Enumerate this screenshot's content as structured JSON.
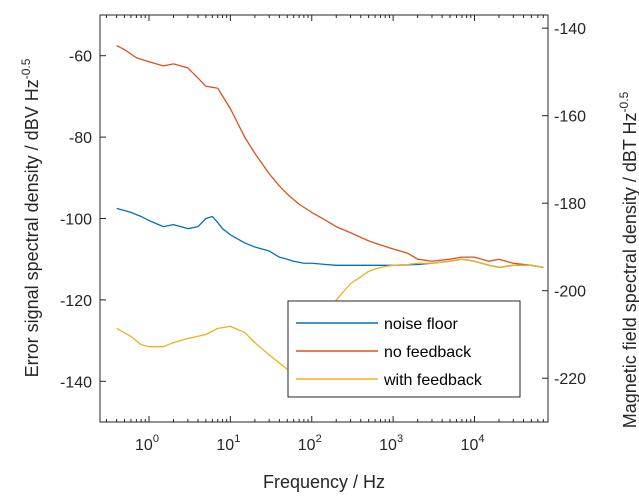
{
  "chart_data": {
    "type": "line",
    "xlabel": "Frequency / Hz",
    "ylabel_left": "Error signal spectral density / dBV Hz",
    "ylabel_left_exp": "-0.5",
    "ylabel_right": "Magnetic field spectral density / dBT Hz",
    "ylabel_right_exp": "-0.5",
    "x_scale": "log",
    "xlim": [
      0.25,
      80000
    ],
    "ylim_left": [
      -150,
      -50
    ],
    "ylim_right": [
      -230,
      -137
    ],
    "x_ticks": [
      1,
      10,
      100,
      1000,
      10000
    ],
    "x_tick_labels": [
      {
        "base": "10",
        "exp": "0"
      },
      {
        "base": "10",
        "exp": "1"
      },
      {
        "base": "10",
        "exp": "2"
      },
      {
        "base": "10",
        "exp": "3"
      },
      {
        "base": "10",
        "exp": "4"
      }
    ],
    "y_ticks_left": [
      -60,
      -80,
      -100,
      -120,
      -140
    ],
    "y_tick_labels_left": [
      "-60",
      "-80",
      "-100",
      "-120",
      "-140"
    ],
    "y_ticks_right": [
      -140,
      -160,
      -180,
      -200,
      -220
    ],
    "y_tick_labels_right": [
      "-140",
      "-160",
      "-180",
      "-200",
      "-220"
    ],
    "grid": false,
    "legend_position": "bottom-right",
    "series": [
      {
        "name": "noise floor",
        "color": "#0072BD",
        "x": [
          0.4,
          0.6,
          0.8,
          1,
          1.5,
          2,
          3,
          4,
          5,
          6,
          7,
          8,
          10,
          15,
          20,
          30,
          40,
          50,
          60,
          80,
          100,
          150,
          200,
          300,
          500,
          1000,
          2000,
          3000,
          5000,
          7000,
          10000,
          15000,
          20000,
          30000,
          50000,
          70000
        ],
        "y": [
          -97.5,
          -98.5,
          -99.5,
          -100.5,
          -102,
          -101.5,
          -102.5,
          -102,
          -100,
          -99.5,
          -101,
          -102.5,
          -104,
          -106,
          -107,
          -108,
          -109.5,
          -110,
          -110.5,
          -111,
          -111,
          -111.3,
          -111.5,
          -111.5,
          -111.5,
          -111.5,
          -111.3,
          -111,
          -110.5,
          -110,
          -110.5,
          -111.5,
          -112,
          -111.5,
          -111.5,
          -112
        ]
      },
      {
        "name": "no feedback",
        "color": "#D95319",
        "x": [
          0.4,
          0.5,
          0.7,
          1,
          1.5,
          2,
          3,
          4,
          5,
          7,
          10,
          15,
          20,
          30,
          40,
          50,
          70,
          100,
          150,
          200,
          300,
          500,
          700,
          1000,
          1500,
          2000,
          3000,
          5000,
          7000,
          10000,
          15000,
          20000,
          30000,
          50000,
          70000
        ],
        "y": [
          -57.5,
          -58.5,
          -60.5,
          -61.5,
          -62.5,
          -62,
          -63,
          -65.5,
          -67.5,
          -68,
          -73,
          -80,
          -84,
          -89,
          -92,
          -94,
          -96.5,
          -98.5,
          -100.5,
          -102,
          -103.5,
          -105.5,
          -106.5,
          -107.5,
          -108.5,
          -110,
          -110.5,
          -110,
          -109.5,
          -109.5,
          -110.5,
          -110,
          -111,
          -111.5,
          -112
        ]
      },
      {
        "name": "with feedback",
        "color": "#EDB120",
        "x": [
          0.4,
          0.6,
          0.8,
          1,
          1.5,
          2,
          3,
          5,
          7,
          10,
          15,
          20,
          30,
          40,
          50,
          70,
          100,
          150,
          200,
          300,
          500,
          700,
          1000,
          1500,
          2000,
          3000,
          5000,
          7000,
          10000,
          15000,
          20000,
          30000,
          50000,
          70000
        ],
        "y": [
          -127,
          -129,
          -131,
          -131.5,
          -131.5,
          -130.5,
          -129.5,
          -128.5,
          -127,
          -126.5,
          -128,
          -130.5,
          -133.5,
          -135.5,
          -137,
          -136.5,
          -131.5,
          -124.5,
          -120,
          -116,
          -113,
          -112,
          -111.5,
          -111.3,
          -111,
          -111,
          -110.5,
          -110,
          -110.5,
          -111.5,
          -112,
          -111.5,
          -111.5,
          -112
        ]
      }
    ]
  }
}
